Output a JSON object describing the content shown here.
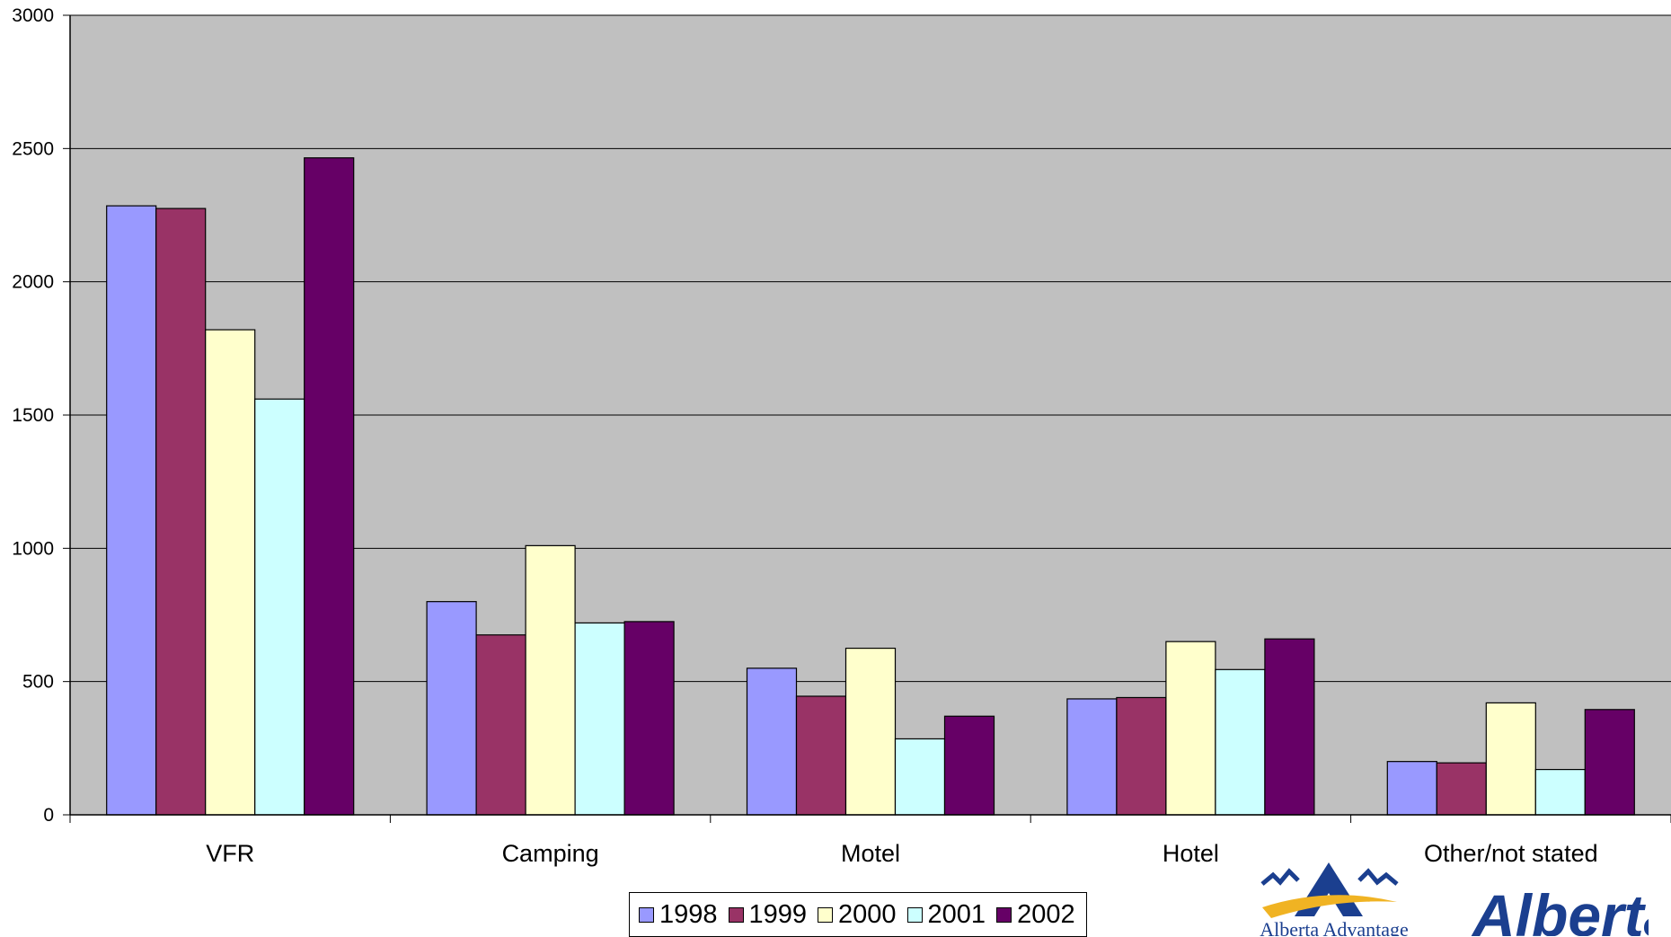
{
  "chart_data": {
    "type": "bar",
    "categories": [
      "VFR",
      "Camping",
      "Motel",
      "Hotel",
      "Other/not stated"
    ],
    "series": [
      {
        "name": "1998",
        "color": "#9999FF",
        "values": [
          2285,
          800,
          550,
          435,
          200
        ]
      },
      {
        "name": "1999",
        "color": "#993366",
        "values": [
          2275,
          675,
          445,
          440,
          195
        ]
      },
      {
        "name": "2000",
        "color": "#FFFFCC",
        "values": [
          1820,
          1010,
          625,
          650,
          420
        ]
      },
      {
        "name": "2001",
        "color": "#CCFFFF",
        "values": [
          1560,
          720,
          285,
          545,
          170
        ]
      },
      {
        "name": "2002",
        "color": "#660066",
        "values": [
          2465,
          725,
          370,
          660,
          395
        ]
      }
    ],
    "yticks": [
      "0",
      "500",
      "1000",
      "1500",
      "2000",
      "2500",
      "3000"
    ],
    "ylim": [
      0,
      3000
    ],
    "plot_background": "#C0C0C0",
    "grid": true,
    "legend_position": "bottom"
  },
  "logos": {
    "left": {
      "name": "alberta-advantage-logo",
      "text": "Alberta Advantage",
      "color_blue": "#1B3F8F",
      "color_gold": "#F0B323"
    },
    "right": {
      "name": "alberta-logo",
      "text": "Alberta",
      "color": "#1B3F8F"
    }
  }
}
